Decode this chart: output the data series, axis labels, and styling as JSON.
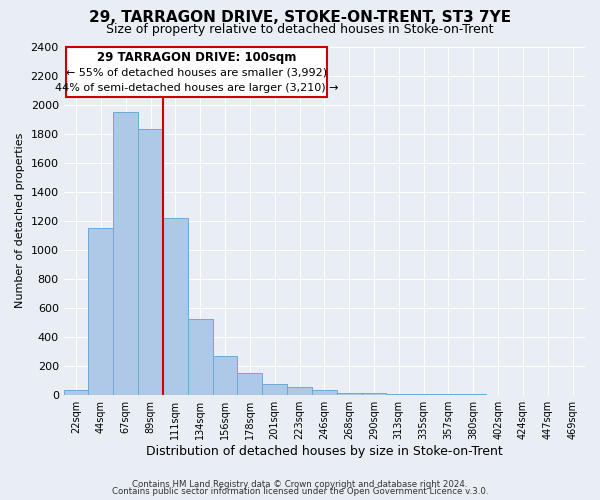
{
  "title": "29, TARRAGON DRIVE, STOKE-ON-TRENT, ST3 7YE",
  "subtitle": "Size of property relative to detached houses in Stoke-on-Trent",
  "xlabel": "Distribution of detached houses by size in Stoke-on-Trent",
  "ylabel": "Number of detached properties",
  "bar_labels": [
    "22sqm",
    "44sqm",
    "67sqm",
    "89sqm",
    "111sqm",
    "134sqm",
    "156sqm",
    "178sqm",
    "201sqm",
    "223sqm",
    "246sqm",
    "268sqm",
    "290sqm",
    "313sqm",
    "335sqm",
    "357sqm",
    "380sqm",
    "402sqm",
    "424sqm",
    "447sqm",
    "469sqm"
  ],
  "bar_values": [
    30,
    1150,
    1950,
    1830,
    1220,
    520,
    265,
    150,
    75,
    50,
    35,
    10,
    10,
    5,
    3,
    2,
    2,
    1,
    1,
    1,
    0
  ],
  "bar_color": "#aec9e8",
  "bar_edgecolor": "#6aaad4",
  "vline_x_index": 3.5,
  "vline_color": "#cc0000",
  "ylim": [
    0,
    2400
  ],
  "yticks": [
    0,
    200,
    400,
    600,
    800,
    1000,
    1200,
    1400,
    1600,
    1800,
    2000,
    2200,
    2400
  ],
  "annotation_title": "29 TARRAGON DRIVE: 100sqm",
  "annotation_line1": "← 55% of detached houses are smaller (3,992)",
  "annotation_line2": "44% of semi-detached houses are larger (3,210) →",
  "annotation_box_color": "#cc0000",
  "footer1": "Contains HM Land Registry data © Crown copyright and database right 2024.",
  "footer2": "Contains public sector information licensed under the Open Government Licence v.3.0.",
  "background_color": "#e8eef4",
  "grid_color": "#ffffff",
  "title_fontsize": 11,
  "subtitle_fontsize": 9,
  "ylabel_fontsize": 8,
  "xlabel_fontsize": 9
}
